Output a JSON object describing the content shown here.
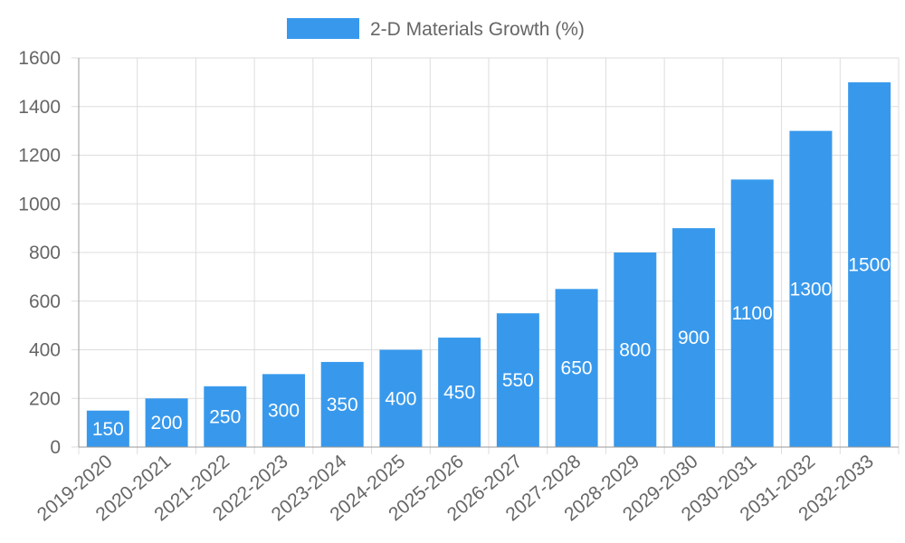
{
  "chart_data": {
    "type": "bar",
    "series_name": "2-D Materials Growth (%)",
    "categories": [
      "2019-2020",
      "2020-2021",
      "2021-2022",
      "2022-2023",
      "2023-2024",
      "2024-2025",
      "2025-2026",
      "2026-2027",
      "2027-2028",
      "2028-2029",
      "2029-2030",
      "2030-2031",
      "2031-2032",
      "2032-2033"
    ],
    "values": [
      150,
      200,
      250,
      300,
      350,
      400,
      450,
      550,
      650,
      800,
      900,
      1100,
      1300,
      1500
    ],
    "ylim": [
      0,
      1600
    ],
    "yticks": [
      0,
      200,
      400,
      600,
      800,
      1000,
      1200,
      1400,
      1600
    ],
    "legend_position": "top-center",
    "grid": true,
    "bar_color": "#3899ec"
  }
}
